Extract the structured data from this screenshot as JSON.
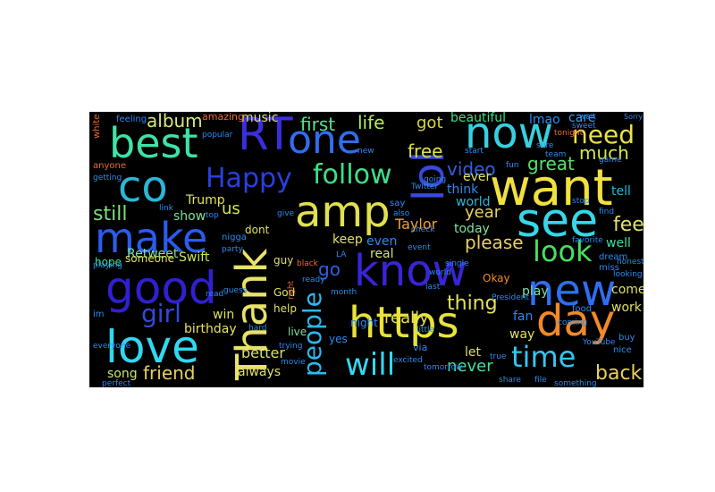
{
  "image": {
    "background": "#ffffff",
    "cloud_background": "#000000"
  },
  "words": [
    {
      "text": "best",
      "color": "#3ee2a8"
    },
    {
      "text": "RT",
      "color": "#3a2ee0"
    },
    {
      "text": "one",
      "color": "#2f6ef0"
    },
    {
      "text": "now",
      "color": "#38d0e0"
    },
    {
      "text": "want",
      "color": "#f0e040"
    },
    {
      "text": "see",
      "color": "#35d7e8"
    },
    {
      "text": "need",
      "color": "#e8e24a"
    },
    {
      "text": "much",
      "color": "#d6e84a"
    },
    {
      "text": "co",
      "color": "#2ab6d8"
    },
    {
      "text": "Happy",
      "color": "#2a3fe0"
    },
    {
      "text": "follow",
      "color": "#3ee08a"
    },
    {
      "text": "amp",
      "color": "#e0e050"
    },
    {
      "text": "lol",
      "color": "#3848e0"
    },
    {
      "text": "make",
      "color": "#2b5cf0"
    },
    {
      "text": "Thank",
      "color": "#e8e26a"
    },
    {
      "text": "know",
      "color": "#3a24d8"
    },
    {
      "text": "look",
      "color": "#48e05a"
    },
    {
      "text": "new",
      "color": "#2f6ef0"
    },
    {
      "text": "good",
      "color": "#3020d0"
    },
    {
      "text": "love",
      "color": "#30d8f0"
    },
    {
      "text": "https",
      "color": "#e8e23a"
    },
    {
      "text": "day",
      "color": "#f08a28"
    },
    {
      "text": "people",
      "color": "#2db8f0"
    },
    {
      "text": "will",
      "color": "#34d8f0"
    },
    {
      "text": "time",
      "color": "#36c6f0"
    },
    {
      "text": "girl",
      "color": "#3348d8"
    },
    {
      "text": "album",
      "color": "#d8e87a"
    },
    {
      "text": "first",
      "color": "#54e094"
    },
    {
      "text": "life",
      "color": "#b8ec5a"
    },
    {
      "text": "got",
      "color": "#d8d84a"
    },
    {
      "text": "free",
      "color": "#e0e04a"
    },
    {
      "text": "video",
      "color": "#3060e0"
    },
    {
      "text": "great",
      "color": "#5ae06a"
    },
    {
      "text": "feel",
      "color": "#e0e26a"
    },
    {
      "text": "year",
      "color": "#e8d060"
    },
    {
      "text": "please",
      "color": "#e8d060"
    },
    {
      "text": "still",
      "color": "#7ae07a"
    },
    {
      "text": "us",
      "color": "#d0e84a"
    },
    {
      "text": "show",
      "color": "#7ee0a0"
    },
    {
      "text": "Trump",
      "color": "#e0e060"
    },
    {
      "text": "Swift",
      "color": "#c8e85a"
    },
    {
      "text": "Taylor",
      "color": "#f0a040"
    },
    {
      "text": "go",
      "color": "#3060e0"
    },
    {
      "text": "thing",
      "color": "#e0e060"
    },
    {
      "text": "really",
      "color": "#e0e050"
    },
    {
      "text": "back",
      "color": "#e8d060"
    },
    {
      "text": "never",
      "color": "#3ee0a0"
    },
    {
      "text": "friend",
      "color": "#e8d060"
    },
    {
      "text": "song",
      "color": "#c8e86a"
    },
    {
      "text": "birthday",
      "color": "#e8e060"
    },
    {
      "text": "win",
      "color": "#e0e060"
    },
    {
      "text": "better",
      "color": "#d8e070"
    },
    {
      "text": "always",
      "color": "#e0e060"
    },
    {
      "text": "beautiful",
      "color": "#3ee080"
    },
    {
      "text": "lmao",
      "color": "#2a8af0"
    },
    {
      "text": "care",
      "color": "#40a0f0"
    },
    {
      "text": "Retweet",
      "color": "#7ee0a0"
    },
    {
      "text": "hope",
      "color": "#3ee0a0"
    },
    {
      "text": "music",
      "color": "#e0e070"
    },
    {
      "text": "amazing",
      "color": "#f06a30"
    },
    {
      "text": "fan",
      "color": "#2a8af0"
    },
    {
      "text": "way",
      "color": "#e0e060"
    },
    {
      "text": "let",
      "color": "#e0e060"
    },
    {
      "text": "work",
      "color": "#e0e060"
    },
    {
      "text": "come",
      "color": "#e0e060"
    },
    {
      "text": "well",
      "color": "#3ee0a0"
    },
    {
      "text": "tell",
      "color": "#2ab6d8"
    },
    {
      "text": "keep",
      "color": "#e0e060"
    },
    {
      "text": "even",
      "color": "#2a8af0"
    },
    {
      "text": "real",
      "color": "#d8e07a"
    },
    {
      "text": "play",
      "color": "#7ee0a0"
    },
    {
      "text": "think",
      "color": "#2a8af0"
    },
    {
      "text": "today",
      "color": "#7ee0a0"
    },
    {
      "text": "world",
      "color": "#2ab6d8"
    },
    {
      "text": "ever",
      "color": "#e0e060"
    },
    {
      "text": "someone",
      "color": "#e0e060"
    },
    {
      "text": "guy",
      "color": "#e0e060"
    },
    {
      "text": "dont",
      "color": "#e0e060"
    },
    {
      "text": "God",
      "color": "#e0e060"
    },
    {
      "text": "help",
      "color": "#e0e060"
    },
    {
      "text": "live",
      "color": "#7ee0a0"
    },
    {
      "text": "yes",
      "color": "#2a8af0"
    },
    {
      "text": "night",
      "color": "#2a8af0"
    },
    {
      "text": "Okay",
      "color": "#f08a28"
    },
    {
      "text": "feeling",
      "color": "#2a8af0"
    },
    {
      "text": "white",
      "color": "#f06a30"
    },
    {
      "text": "anyone",
      "color": "#f06a30"
    },
    {
      "text": "getting",
      "color": "#2a8af0"
    },
    {
      "text": "popular",
      "color": "#2a8af0"
    },
    {
      "text": "going",
      "color": "#2a8af0"
    },
    {
      "text": "event",
      "color": "#2a8af0"
    },
    {
      "text": "last",
      "color": "#2a8af0"
    },
    {
      "text": "via",
      "color": "#2a8af0"
    },
    {
      "text": "nigga",
      "color": "#2a8af0"
    },
    {
      "text": "im",
      "color": "#2a8af0"
    },
    {
      "text": "black",
      "color": "#f06a30"
    },
    {
      "text": "right",
      "color": "#f06a30"
    },
    {
      "text": "excited",
      "color": "#2a8af0"
    },
    {
      "text": "little",
      "color": "#2a8af0"
    },
    {
      "text": "single",
      "color": "#2a8af0"
    },
    {
      "text": "President",
      "color": "#2a8af0"
    },
    {
      "text": "tomorrow",
      "color": "#2a8af0"
    },
    {
      "text": "buy",
      "color": "#2a8af0"
    },
    {
      "text": "nice",
      "color": "#2a8af0"
    },
    {
      "text": "food",
      "color": "#2a8af0"
    },
    {
      "text": "dream",
      "color": "#2a8af0"
    },
    {
      "text": "miss",
      "color": "#2a8af0"
    },
    {
      "text": "find",
      "color": "#2a8af0"
    },
    {
      "text": "stop",
      "color": "#2a8af0"
    },
    {
      "text": "game",
      "color": "#2a8af0"
    },
    {
      "text": "tonight",
      "color": "#f06a30"
    },
    {
      "text": "sweet",
      "color": "#2a8af0"
    },
    {
      "text": "wait",
      "color": "#2a8af0"
    },
    {
      "text": "file",
      "color": "#2a8af0"
    },
    {
      "text": "something",
      "color": "#2a8af0"
    },
    {
      "text": "share",
      "color": "#2a8af0"
    },
    {
      "text": "true",
      "color": "#2a8af0"
    },
    {
      "text": "playing",
      "color": "#2a8af0"
    },
    {
      "text": "link",
      "color": "#2a8af0"
    },
    {
      "text": "say",
      "color": "#2a8af0"
    },
    {
      "text": "also",
      "color": "#2a8af0"
    },
    {
      "text": "Twitter",
      "color": "#2a8af0"
    },
    {
      "text": "check",
      "color": "#2a8af0"
    },
    {
      "text": "hard",
      "color": "#2a8af0"
    },
    {
      "text": "trying",
      "color": "#2a8af0"
    },
    {
      "text": "movie",
      "color": "#2a8af0"
    },
    {
      "text": "YouTube",
      "color": "#2a8af0"
    },
    {
      "text": "favorite",
      "color": "#2a8af0"
    },
    {
      "text": "LA",
      "color": "#2a8af0"
    },
    {
      "text": "ready",
      "color": "#2a8af0"
    },
    {
      "text": "month",
      "color": "#2a8af0"
    },
    {
      "text": "fun",
      "color": "#2a8af0"
    },
    {
      "text": "looking",
      "color": "#2a8af0"
    },
    {
      "text": "honestly",
      "color": "#2a8af0"
    },
    {
      "text": "everyone",
      "color": "#2a8af0"
    },
    {
      "text": "party",
      "color": "#2a8af0"
    },
    {
      "text": "top",
      "color": "#2a8af0"
    },
    {
      "text": "give",
      "color": "#2a8af0"
    },
    {
      "text": "start",
      "color": "#2a8af0"
    },
    {
      "text": "sure",
      "color": "#2a8af0"
    },
    {
      "text": "team",
      "color": "#2a8af0"
    },
    {
      "text": "new",
      "color": "#2a8af0"
    },
    {
      "text": "perfect",
      "color": "#2a8af0"
    },
    {
      "text": "guess",
      "color": "#2a8af0"
    },
    {
      "text": "coming",
      "color": "#2a8af0"
    },
    {
      "text": "read",
      "color": "#2a8af0"
    },
    {
      "text": "Sorry",
      "color": "#2a8af0"
    },
    {
      "text": "world",
      "color": "#2a8af0"
    }
  ]
}
